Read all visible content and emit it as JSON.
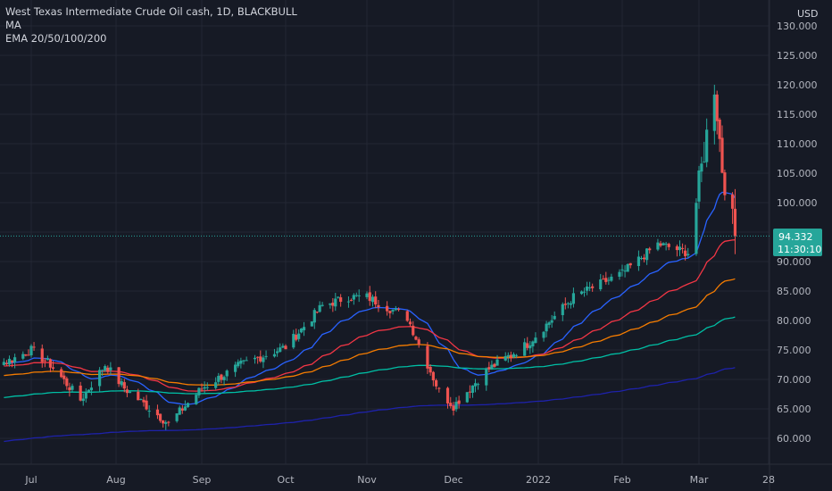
{
  "legend": {
    "title": "West Texas Intermediate Crude Oil cash, 1D, BLACKBULL",
    "ma_label": "MA",
    "ema_label": "EMA 20/50/100/200"
  },
  "currency": "USD",
  "current_price": "94.332",
  "countdown": "11:30:10",
  "colors": {
    "background": "#161a25",
    "up": "#26a69a",
    "down": "#ef5350",
    "ema20": "#2962ff",
    "ema50": "#f23645",
    "ema100": "#f57c00",
    "ema200": "#00bfa5",
    "ma": "#1e22aa",
    "price_line": "#26a69a"
  },
  "chart_data": {
    "type": "candlestick",
    "title": "West Texas Intermediate Crude Oil cash, 1D, BLACKBULL",
    "y_axis": {
      "unit": "USD",
      "ticks": [
        "60.000",
        "65.000",
        "70.000",
        "75.000",
        "80.000",
        "85.000",
        "90.000",
        "95.000",
        "100.000",
        "105.000",
        "110.000",
        "115.000",
        "120.000",
        "125.000",
        "130.000"
      ],
      "range": [
        56,
        132
      ]
    },
    "x_axis": {
      "ticks": [
        "Jul",
        "Aug",
        "Sep",
        "Oct",
        "Nov",
        "Dec",
        "2022",
        "Feb",
        "Mar",
        "28"
      ]
    },
    "last_price": 94.332,
    "price_path_approx": [
      {
        "date": "2021-06-22",
        "close": 73.0
      },
      {
        "date": "2021-07-01",
        "close": 75.0
      },
      {
        "date": "2021-07-08",
        "close": 72.5
      },
      {
        "date": "2021-07-19",
        "close": 66.5
      },
      {
        "date": "2021-07-28",
        "close": 72.5
      },
      {
        "date": "2021-08-04",
        "close": 68.5
      },
      {
        "date": "2021-08-20",
        "close": 62.5
      },
      {
        "date": "2021-09-01",
        "close": 68.5
      },
      {
        "date": "2021-09-15",
        "close": 72.5
      },
      {
        "date": "2021-10-01",
        "close": 75.5
      },
      {
        "date": "2021-10-15",
        "close": 82.5
      },
      {
        "date": "2021-10-25",
        "close": 84.0
      },
      {
        "date": "2021-11-01",
        "close": 84.0
      },
      {
        "date": "2021-11-15",
        "close": 80.5
      },
      {
        "date": "2021-11-26",
        "close": 68.0
      },
      {
        "date": "2021-12-01",
        "close": 65.5
      },
      {
        "date": "2021-12-13",
        "close": 71.5
      },
      {
        "date": "2021-12-28",
        "close": 76.0
      },
      {
        "date": "2022-01-14",
        "close": 84.0
      },
      {
        "date": "2022-02-01",
        "close": 88.0
      },
      {
        "date": "2022-02-14",
        "close": 93.0
      },
      {
        "date": "2022-02-25",
        "close": 91.5
      },
      {
        "date": "2022-03-01",
        "close": 103.0
      },
      {
        "date": "2022-03-07",
        "close": 120.0
      },
      {
        "date": "2022-03-10",
        "close": 106.0
      },
      {
        "date": "2022-03-15",
        "close": 94.332
      }
    ],
    "indicators": [
      {
        "name": "EMA 20",
        "approx_end_value": 106.5
      },
      {
        "name": "EMA 50",
        "approx_end_value": 98.0
      },
      {
        "name": "EMA 100",
        "approx_end_value": 93.5
      },
      {
        "name": "EMA 200",
        "approx_end_value": 86.5
      },
      {
        "name": "MA",
        "approx_end_value": 79.0
      }
    ],
    "grid": true
  }
}
